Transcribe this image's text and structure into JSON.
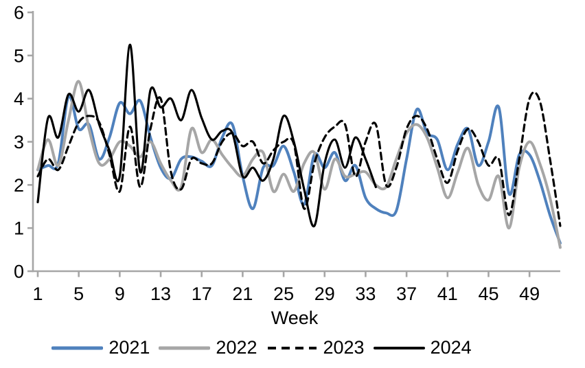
{
  "chart_data": {
    "type": "line",
    "title": "",
    "xlabel": "Week",
    "ylabel": "",
    "ylim": [
      0,
      6
    ],
    "yticks": [
      0,
      1,
      2,
      3,
      4,
      5,
      6
    ],
    "xticks": [
      1,
      5,
      9,
      13,
      17,
      21,
      25,
      29,
      33,
      37,
      41,
      45,
      49
    ],
    "x_range": [
      1,
      52
    ],
    "grid": "off",
    "legend_position": "bottom",
    "colors": {
      "axis": "#A6A6A6",
      "text": "#000000",
      "background": "#FFFFFF",
      "series_2021": "#4F81BD",
      "series_2022": "#A6A6A6",
      "series_2023": "#000000",
      "series_2024": "#000000"
    },
    "series": [
      {
        "name": "2021",
        "color": "#4F81BD",
        "style": "solid",
        "width": 4,
        "start_week": 1,
        "values": [
          2.35,
          2.45,
          2.5,
          4.05,
          3.3,
          3.4,
          2.6,
          3.1,
          3.9,
          3.65,
          3.95,
          3.1,
          2.4,
          2.15,
          2.6,
          2.65,
          2.55,
          2.45,
          3.1,
          3.4,
          2.2,
          1.45,
          2.4,
          2.45,
          2.9,
          2.3,
          1.55,
          2.7,
          2.4,
          2.75,
          2.1,
          2.45,
          1.7,
          1.45,
          1.35,
          1.4,
          2.6,
          3.75,
          3.2,
          3.05,
          2.35,
          2.95,
          3.3,
          2.45,
          3.0,
          3.8,
          1.8,
          2.7,
          2.7,
          2.1,
          1.3,
          0.65
        ]
      },
      {
        "name": "2022",
        "color": "#A6A6A6",
        "style": "solid",
        "width": 4,
        "start_week": 1,
        "values": [
          2.35,
          3.05,
          2.45,
          3.5,
          4.4,
          3.3,
          2.5,
          2.6,
          3.0,
          2.9,
          2.65,
          3.0,
          2.5,
          2.1,
          1.95,
          3.3,
          2.75,
          3.05,
          2.7,
          2.4,
          2.2,
          2.6,
          2.75,
          1.85,
          2.25,
          1.85,
          2.5,
          2.75,
          1.9,
          2.6,
          2.2,
          2.25,
          2.3,
          2.0,
          1.95,
          2.6,
          3.2,
          3.4,
          3.1,
          2.4,
          1.7,
          2.3,
          2.85,
          2.0,
          1.65,
          2.2,
          1.0,
          2.4,
          3.0,
          2.5,
          1.7,
          0.55
        ]
      },
      {
        "name": "2023",
        "color": "#000000",
        "style": "dashed",
        "width": 3.2,
        "start_week": 1,
        "values": [
          2.2,
          2.6,
          2.35,
          2.9,
          3.45,
          3.6,
          3.45,
          2.7,
          1.85,
          3.35,
          1.95,
          3.3,
          4.0,
          2.3,
          1.9,
          2.6,
          2.5,
          2.5,
          3.0,
          3.2,
          2.9,
          3.0,
          2.5,
          2.8,
          3.0,
          2.95,
          1.45,
          2.5,
          3.1,
          3.35,
          3.4,
          2.2,
          3.0,
          3.4,
          2.0,
          2.4,
          3.3,
          3.6,
          3.3,
          2.6,
          2.05,
          2.8,
          3.3,
          3.0,
          2.45,
          2.6,
          1.3,
          2.6,
          4.0,
          3.95,
          2.6,
          1.05
        ]
      },
      {
        "name": "2024",
        "color": "#000000",
        "style": "solid",
        "width": 3.2,
        "start_week": 1,
        "values": [
          1.6,
          3.55,
          3.1,
          4.1,
          3.7,
          4.2,
          3.4,
          2.8,
          2.2,
          5.25,
          2.3,
          4.2,
          3.8,
          4.0,
          3.5,
          4.2,
          3.55,
          3.05,
          3.25,
          3.2,
          2.2,
          2.4,
          2.1,
          2.6,
          3.6,
          3.0,
          1.9,
          1.05,
          2.5,
          3.05,
          2.4,
          3.1,
          2.6,
          1.95
        ]
      }
    ],
    "legend": {
      "items": [
        {
          "label": "2021"
        },
        {
          "label": "2022"
        },
        {
          "label": "2023"
        },
        {
          "label": "2024"
        }
      ]
    }
  }
}
